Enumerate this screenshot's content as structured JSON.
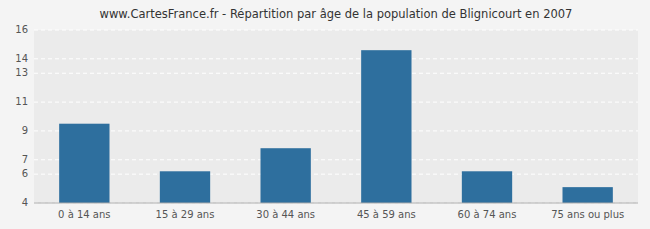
{
  "chart_data": {
    "type": "bar",
    "title": "www.CartesFrance.fr - Répartition par âge de la population de Blignicourt en 2007",
    "categories": [
      "0 à 14 ans",
      "15 à 29 ans",
      "30 à 44 ans",
      "45 à 59 ans",
      "60 à 74 ans",
      "75 ans ou plus"
    ],
    "values": [
      9.5,
      6.2,
      7.8,
      14.6,
      6.2,
      5.1
    ],
    "color": "#2e6f9e",
    "ylim": [
      4,
      16
    ],
    "yticks": [
      4,
      6,
      7,
      9,
      11,
      13,
      14,
      16
    ],
    "grid": true
  }
}
